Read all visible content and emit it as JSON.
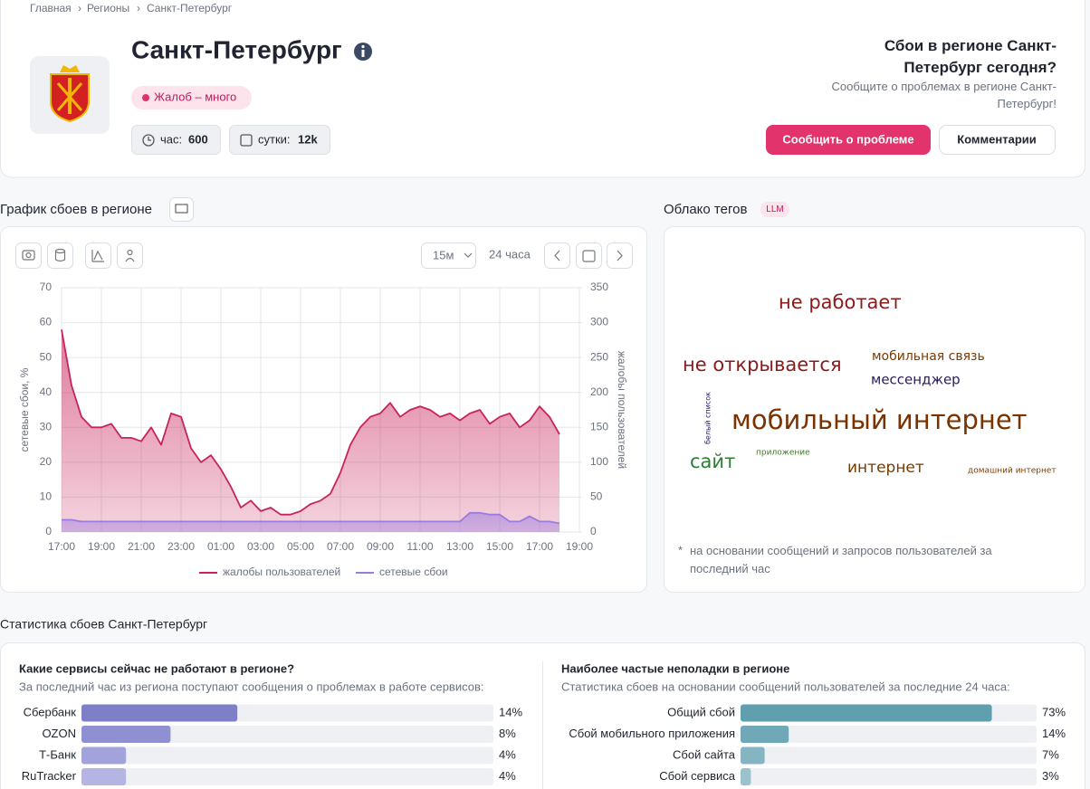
{
  "breadcrumbs": [
    "Главная",
    "Регионы",
    "Санкт-Петербург"
  ],
  "header": {
    "title": "Санкт-Петербург",
    "status": "Жалоб – много",
    "hour_label": "час:",
    "hour_value": 600,
    "day_label": "сутки:",
    "day_value": "12k"
  },
  "report": {
    "title": "Сбои в регионе Санкт-Петербург сегодня?",
    "subtitle": "Сообщите о проблемах в регионе Санкт-Петербург!",
    "primary_button": "Сообщить о проблеме",
    "secondary_button": "Комментарии"
  },
  "chart_section": {
    "title": "График сбоев в регионе",
    "interval": "15м",
    "period": "24 часа"
  },
  "chart_data": [
    {
      "type": "line",
      "categories": [
        "17:00",
        null,
        null,
        null,
        "19:00",
        null,
        null,
        null,
        "21:00",
        null,
        null,
        null,
        "23:00",
        null,
        null,
        null,
        "01:00",
        null,
        null,
        null,
        "03:00",
        null,
        null,
        null,
        "05:00",
        null,
        null,
        null,
        "07:00",
        null,
        null,
        null,
        "09:00",
        null,
        null,
        null,
        "11:00",
        null,
        null,
        null,
        "13:00",
        null,
        null,
        null,
        "15:00",
        null,
        null,
        null,
        "17:00",
        null,
        null,
        null,
        "19:00"
      ],
      "series": [
        {
          "name": "жалобы пользователей",
          "color": "#c8235a",
          "axis": "y2",
          "values": [
            290,
            210,
            165,
            150,
            150,
            155,
            135,
            135,
            130,
            150,
            125,
            170,
            165,
            120,
            100,
            110,
            90,
            65,
            35,
            45,
            30,
            35,
            25,
            25,
            30,
            40,
            45,
            55,
            85,
            125,
            150,
            165,
            170,
            185,
            165,
            175,
            180,
            175,
            165,
            170,
            160,
            170,
            175,
            155,
            165,
            170,
            150,
            160,
            180,
            165,
            140,
            null,
            null
          ]
        },
        {
          "name": "сетевые сбои",
          "color": "#9b7be0",
          "values": [
            3.5,
            3.5,
            3,
            3,
            3,
            3,
            3,
            3,
            3,
            3,
            3,
            3,
            3,
            3,
            3,
            3,
            3,
            3,
            3,
            3,
            3,
            3,
            3,
            3,
            3,
            3,
            3,
            3,
            3,
            3,
            3,
            3,
            3,
            3,
            3,
            3,
            3,
            3,
            3,
            3,
            3,
            5.5,
            5.5,
            5,
            5,
            3,
            3,
            4.5,
            3,
            3,
            2.5,
            null,
            null
          ]
        }
      ],
      "ylabel": "сетевые сбои, %",
      "y2label": "жалобы пользователей",
      "ylim": [
        0,
        70
      ],
      "yticks": [
        0,
        10,
        20,
        30,
        40,
        50,
        60,
        70
      ],
      "y2lim": [
        0,
        350
      ],
      "y2ticks": [
        0,
        50,
        100,
        150,
        200,
        250,
        300,
        350
      ],
      "grid": true
    },
    {
      "type": "hbar",
      "title": "Какие сервисы сейчас не работают в регионе?",
      "subtitle": "За последний час из региона поступают сообщения о проблемах в работе сервисов:",
      "categories": [
        "Сбербанк",
        "OZON",
        "Т-Банк",
        "RuTracker"
      ],
      "values": [
        14,
        8,
        4,
        4
      ],
      "value_labels": [
        "14%",
        "8%",
        "4%",
        "4%"
      ],
      "colors": [
        "#7e7fc9",
        "#8f90d2",
        "#a2a3da",
        "#b4b5e2"
      ],
      "xlim": [
        0,
        37
      ]
    },
    {
      "type": "hbar",
      "title": "Наиболее частые неполадки в регионе",
      "subtitle": "Статистика сбоев на основании сообщений пользователей за последние 24 часа:",
      "categories": [
        "Общий сбой",
        "Сбой мобильного приложения",
        "Сбой сайта",
        "Сбой сервиса"
      ],
      "values": [
        73,
        14,
        7,
        3
      ],
      "value_labels": [
        "73%",
        "14%",
        "7%",
        "3%"
      ],
      "colors": [
        "#5f9fae",
        "#6fa9b7",
        "#85b5c2",
        "#9cc3cd"
      ],
      "xlim": [
        0,
        86
      ]
    }
  ],
  "tag_cloud": {
    "title": "Облако тегов",
    "badge": "LLM",
    "tags": [
      {
        "text": "не работает",
        "color": "#8b1a1a"
      },
      {
        "text": "мобильная связь",
        "color": "#7a3b00"
      },
      {
        "text": "не открывается",
        "color": "#8b1a1a"
      },
      {
        "text": "мессенджер",
        "color": "#2b1a5e"
      },
      {
        "text": "мобильный интернет",
        "color": "#7a3300"
      },
      {
        "text": "белый список",
        "color": "#2b1a5e"
      },
      {
        "text": "приложение",
        "color": "#3a7a1a"
      },
      {
        "text": "сайт",
        "color": "#2e7d32"
      },
      {
        "text": "интернет",
        "color": "#7a3b00"
      },
      {
        "text": "домашний интернет",
        "color": "#7a3b00"
      }
    ],
    "footnote_mark": "*",
    "footnote": "на основании сообщений и запросов пользователей за последний час"
  },
  "stats": {
    "title": "Статистика сбоев Санкт-Петербург"
  }
}
